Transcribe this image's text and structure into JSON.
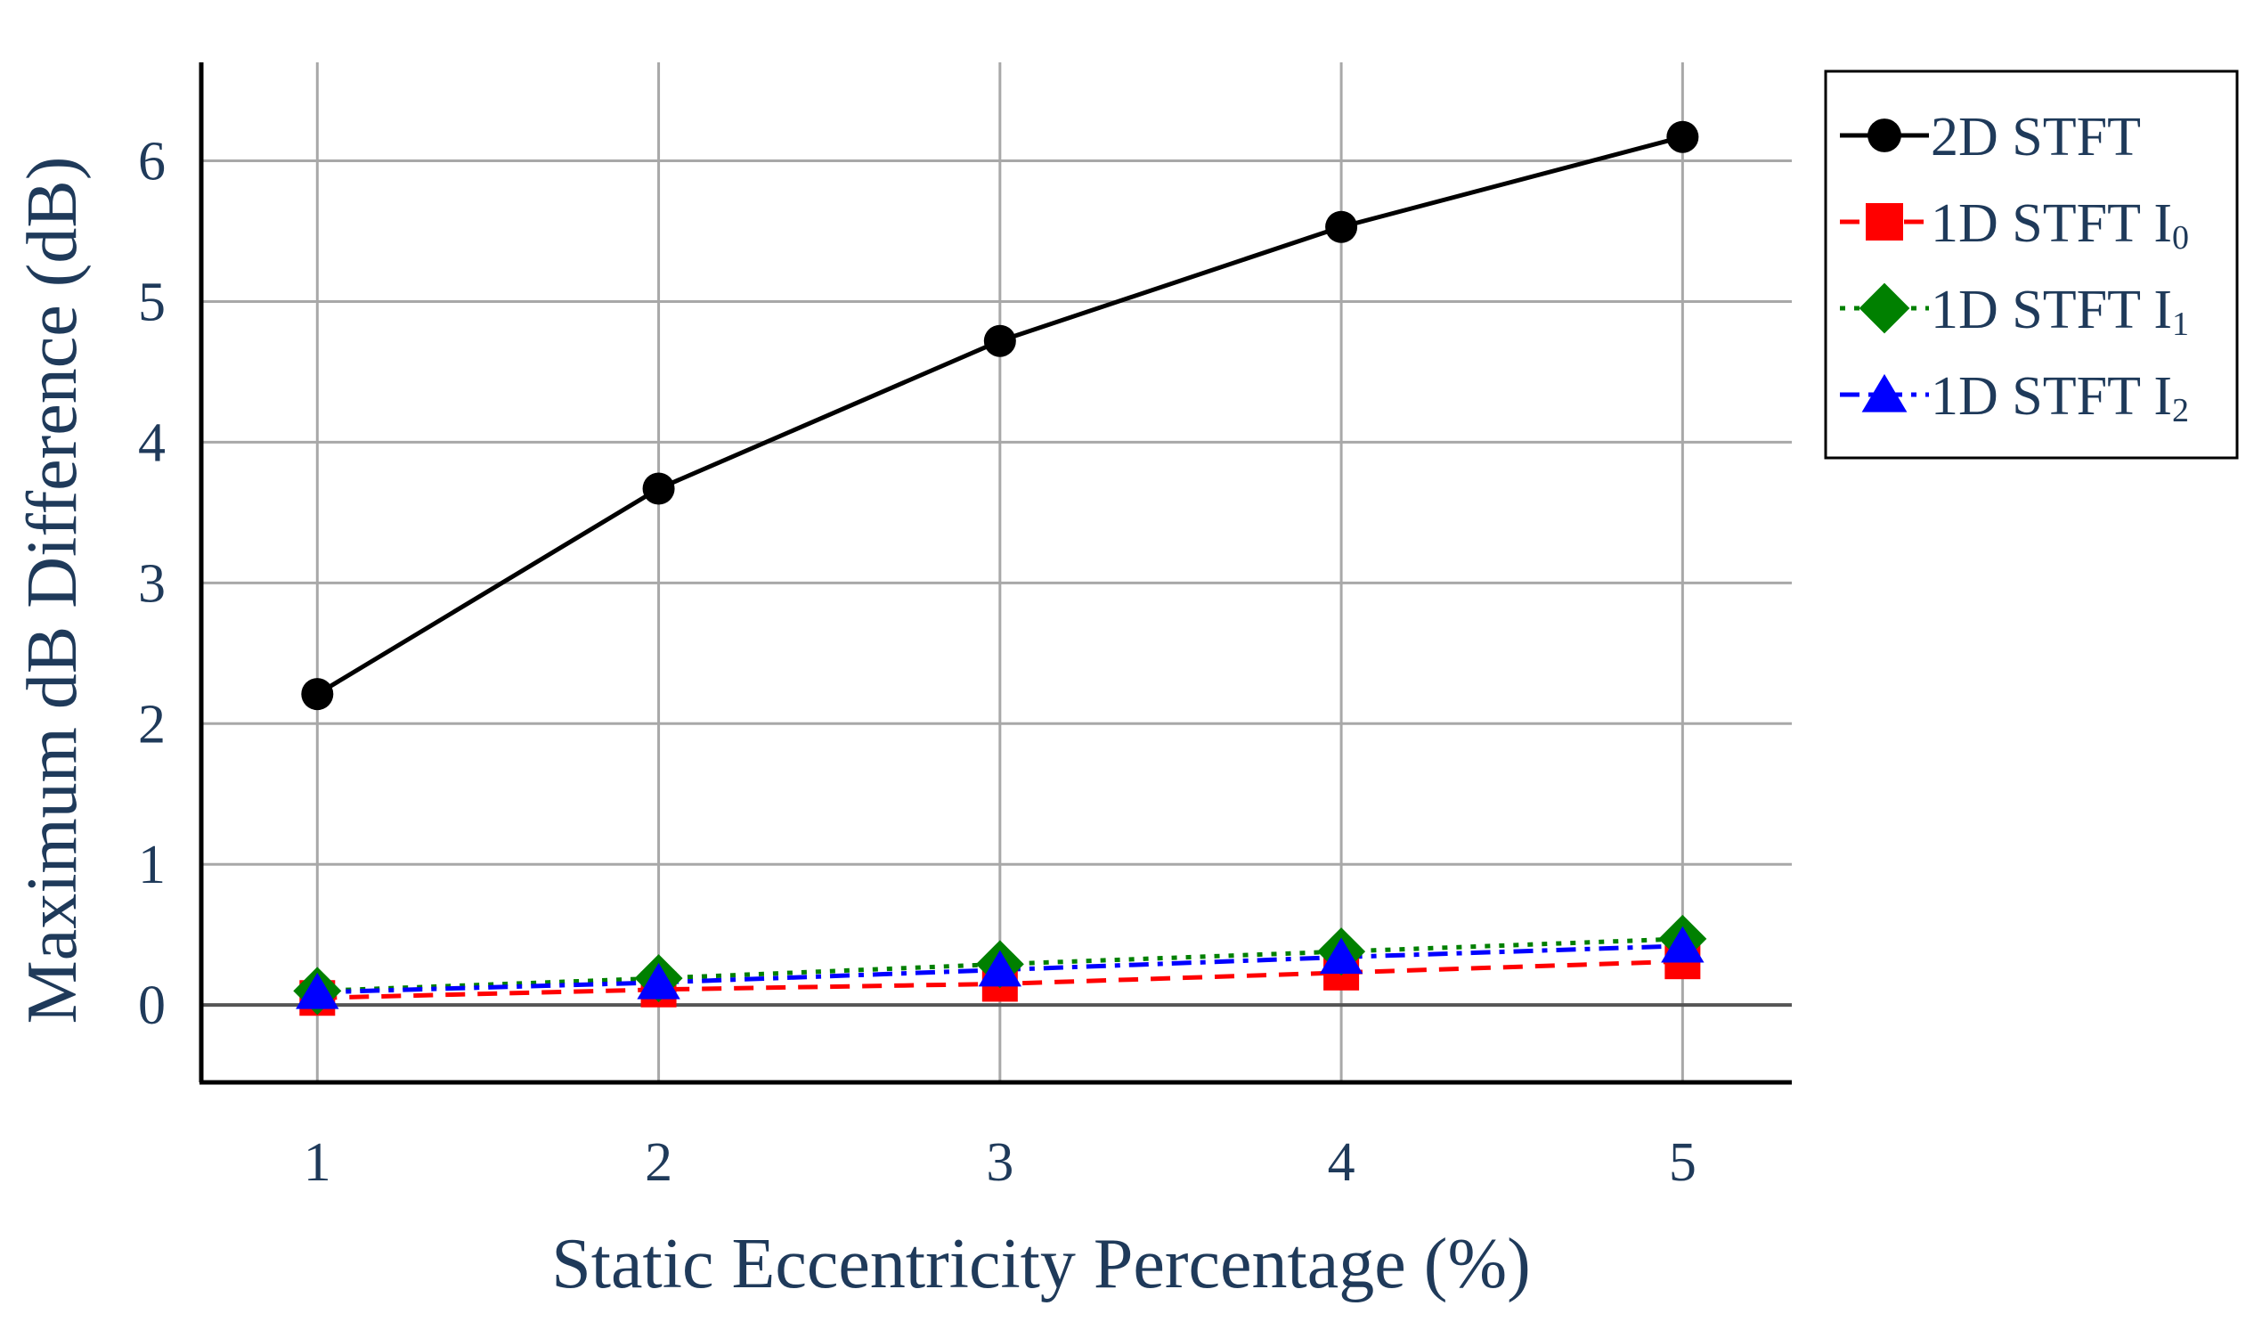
{
  "chart_data": {
    "type": "line",
    "title": "",
    "xlabel": "Static Eccentricity Percentage (%)",
    "ylabel": "Maximum dB Difference (dB)",
    "x": [
      1,
      2,
      3,
      4,
      5
    ],
    "xticks": [
      "1",
      "2",
      "3",
      "4",
      "5"
    ],
    "yticks": [
      "0",
      "1",
      "2",
      "3",
      "4",
      "5",
      "6"
    ],
    "xlim": [
      0.66,
      5.32
    ],
    "ylim": [
      -0.55,
      6.7
    ],
    "grid": true,
    "legend_position": "right",
    "series": [
      {
        "name": "2D STFT",
        "label_main": "2D STFT",
        "label_sub": "",
        "color": "#000000",
        "marker": "circle",
        "dash": "solid",
        "values": [
          2.21,
          3.67,
          4.72,
          5.53,
          6.17
        ]
      },
      {
        "name": "1D STFT I0",
        "label_main": "1D STFT I",
        "label_sub": "0",
        "color": "#ff0000",
        "marker": "square",
        "dash": "dashed",
        "values": [
          0.05,
          0.11,
          0.15,
          0.23,
          0.31
        ]
      },
      {
        "name": "1D STFT I1",
        "label_main": "1D STFT I",
        "label_sub": "1",
        "color": "#008000",
        "marker": "diamond",
        "dash": "dotted",
        "values": [
          0.1,
          0.19,
          0.29,
          0.38,
          0.47
        ]
      },
      {
        "name": "1D STFT I2",
        "label_main": "1D STFT I",
        "label_sub": "2",
        "color": "#0000ff",
        "marker": "triangle",
        "dash": "dashdot",
        "values": [
          0.09,
          0.16,
          0.25,
          0.34,
          0.42
        ]
      }
    ]
  }
}
